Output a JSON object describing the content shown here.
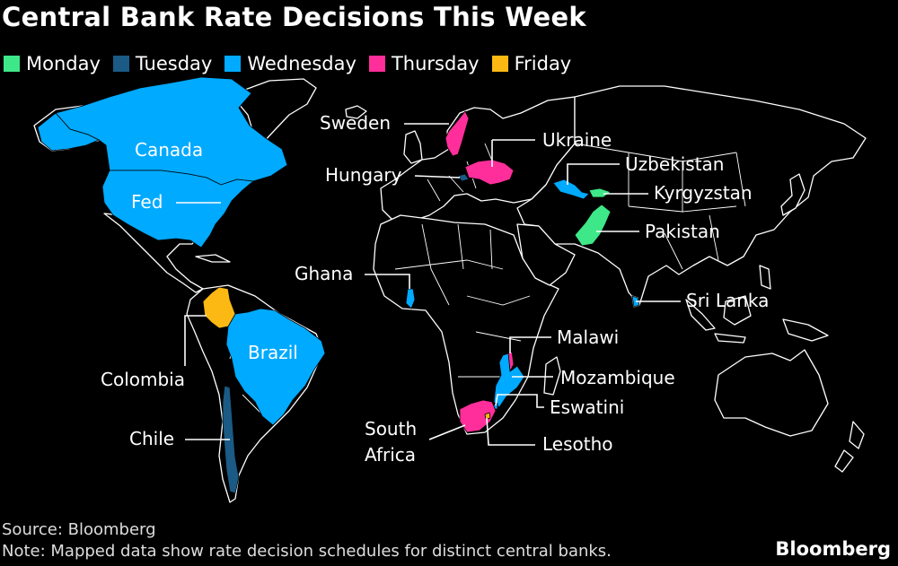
{
  "title": "Central Bank Rate Decisions This Week",
  "legend": [
    {
      "label": "Monday",
      "color": "#3ee888"
    },
    {
      "label": "Tuesday",
      "color": "#1a5a85"
    },
    {
      "label": "Wednesday",
      "color": "#00aaff"
    },
    {
      "label": "Thursday",
      "color": "#ff2e9a"
    },
    {
      "label": "Friday",
      "color": "#fcb913"
    }
  ],
  "regions": {
    "canada": {
      "label": "Canada",
      "day": "Wednesday"
    },
    "fed": {
      "label": "Fed",
      "day": "Wednesday"
    },
    "brazil": {
      "label": "Brazil",
      "day": "Wednesday"
    },
    "colombia": {
      "label": "Colombia",
      "day": "Friday"
    },
    "chile": {
      "label": "Chile",
      "day": "Tuesday"
    },
    "sweden": {
      "label": "Sweden",
      "day": "Thursday"
    },
    "ukraine": {
      "label": "Ukraine",
      "day": "Thursday"
    },
    "hungary": {
      "label": "Hungary",
      "day": "Tuesday"
    },
    "uzbekistan": {
      "label": "Uzbekistan",
      "day": "Wednesday"
    },
    "kyrgyzstan": {
      "label": "Kyrgyzstan",
      "day": "Monday"
    },
    "pakistan": {
      "label": "Pakistan",
      "day": "Monday"
    },
    "sri_lanka": {
      "label": "Sri Lanka",
      "day": "Wednesday"
    },
    "ghana": {
      "label": "Ghana",
      "day": "Wednesday"
    },
    "malawi": {
      "label": "Malawi",
      "day": "Thursday"
    },
    "mozambique": {
      "label": "Mozambique",
      "day": "Wednesday"
    },
    "eswatini": {
      "label": "Eswatini",
      "day": "Wednesday"
    },
    "south_africa": {
      "label_line1": "South",
      "label_line2": "Africa",
      "day": "Thursday"
    },
    "lesotho": {
      "label": "Lesotho",
      "day": "Friday"
    }
  },
  "footer": {
    "source": "Source: Bloomberg",
    "note": "Note: Mapped data show rate decision schedules for distinct central banks.",
    "brand": "Bloomberg"
  }
}
